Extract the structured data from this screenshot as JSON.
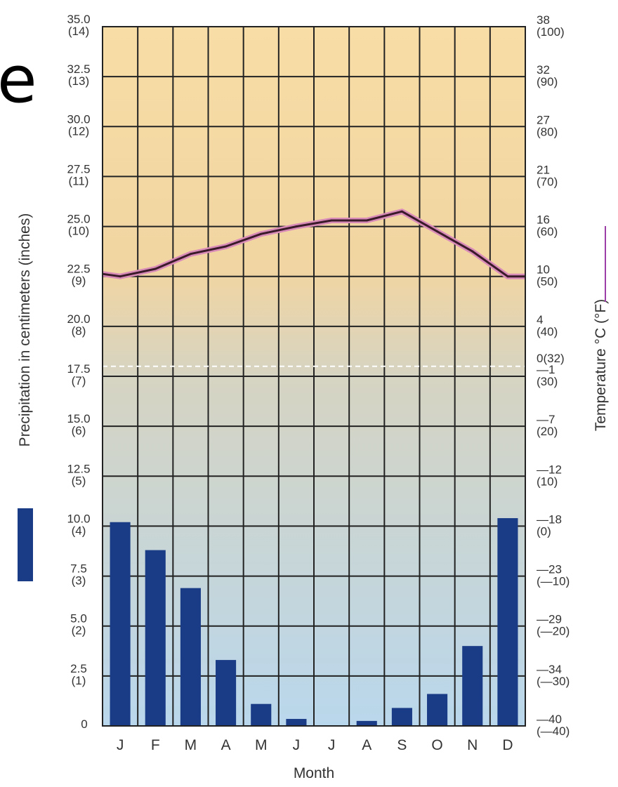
{
  "page": {
    "fragment_text": "e"
  },
  "chart_data": {
    "type": "bar",
    "categories": [
      "J",
      "F",
      "M",
      "A",
      "M",
      "J",
      "J",
      "A",
      "S",
      "O",
      "N",
      "D"
    ],
    "xlabel": "Month",
    "ylabel_left": "Precipitation in centimeters (inches)",
    "ylabel_right": "Temperature °C (°F)",
    "ylim": [
      0,
      35
    ],
    "left_ticks": [
      {
        "v": 0,
        "cm": "0",
        "in": ""
      },
      {
        "v": 2.5,
        "cm": "2.5",
        "in": "(1)"
      },
      {
        "v": 5,
        "cm": "5.0",
        "in": "(2)"
      },
      {
        "v": 7.5,
        "cm": "7.5",
        "in": "(3)"
      },
      {
        "v": 10,
        "cm": "10.0",
        "in": "(4)"
      },
      {
        "v": 12.5,
        "cm": "12.5",
        "in": "(5)"
      },
      {
        "v": 15,
        "cm": "15.0",
        "in": "(6)"
      },
      {
        "v": 17.5,
        "cm": "17.5",
        "in": "(7)"
      },
      {
        "v": 20,
        "cm": "20.0",
        "in": "(8)"
      },
      {
        "v": 22.5,
        "cm": "22.5",
        "in": "(9)"
      },
      {
        "v": 25,
        "cm": "25.0",
        "in": "(10)"
      },
      {
        "v": 27.5,
        "cm": "27.5",
        "in": "(11)"
      },
      {
        "v": 30,
        "cm": "30.0",
        "in": "(12)"
      },
      {
        "v": 32.5,
        "cm": "32.5",
        "in": "(13)"
      },
      {
        "v": 35,
        "cm": "35.0",
        "in": "(14)"
      }
    ],
    "right_ticks": [
      {
        "v": 0,
        "c": "—40",
        "f": "(—40)"
      },
      {
        "v": 2.5,
        "c": "—34",
        "f": "(—30)"
      },
      {
        "v": 5,
        "c": "—29",
        "f": "(—20)"
      },
      {
        "v": 7.5,
        "c": "—23",
        "f": "(—10)"
      },
      {
        "v": 10,
        "c": "—18",
        "f": "(0)"
      },
      {
        "v": 12.5,
        "c": "—12",
        "f": "(10)"
      },
      {
        "v": 15,
        "c": "—7",
        "f": "(20)"
      },
      {
        "v": 17.5,
        "c": "—1",
        "f": "(30)"
      },
      {
        "v": 20,
        "c": "4",
        "f": "(40)"
      },
      {
        "v": 22.5,
        "c": "10",
        "f": "(50)"
      },
      {
        "v": 25,
        "c": "16",
        "f": "(60)"
      },
      {
        "v": 27.5,
        "c": "21",
        "f": "(70)"
      },
      {
        "v": 30,
        "c": "27",
        "f": "(80)"
      },
      {
        "v": 32.5,
        "c": "32",
        "f": "(90)"
      },
      {
        "v": 35,
        "c": "38",
        "f": "(100)"
      }
    ],
    "freezing_label": "0(32)",
    "freezing_value_F": 32,
    "precipitation_cm": [
      10.2,
      8.8,
      6.9,
      3.3,
      1.1,
      0.35,
      0,
      0.25,
      0.9,
      1.6,
      4.0,
      10.4
    ],
    "temperature_F": [
      50,
      51.5,
      54.5,
      56,
      58.5,
      60,
      61.2,
      61.2,
      63,
      59,
      55,
      50
    ],
    "colors": {
      "bars": "#1a3b86",
      "temp_line": "#3b1a2a",
      "temp_glow": "#d98bb8",
      "grid": "#222222",
      "bg_top": "#f8dda6",
      "bg_mid": "#d6d4c2",
      "bg_bottom": "#b9d7ec"
    },
    "legend": {
      "precip_swatch_color": "#1a3b86",
      "temp_swatch_color": "#9b3ea5"
    }
  }
}
